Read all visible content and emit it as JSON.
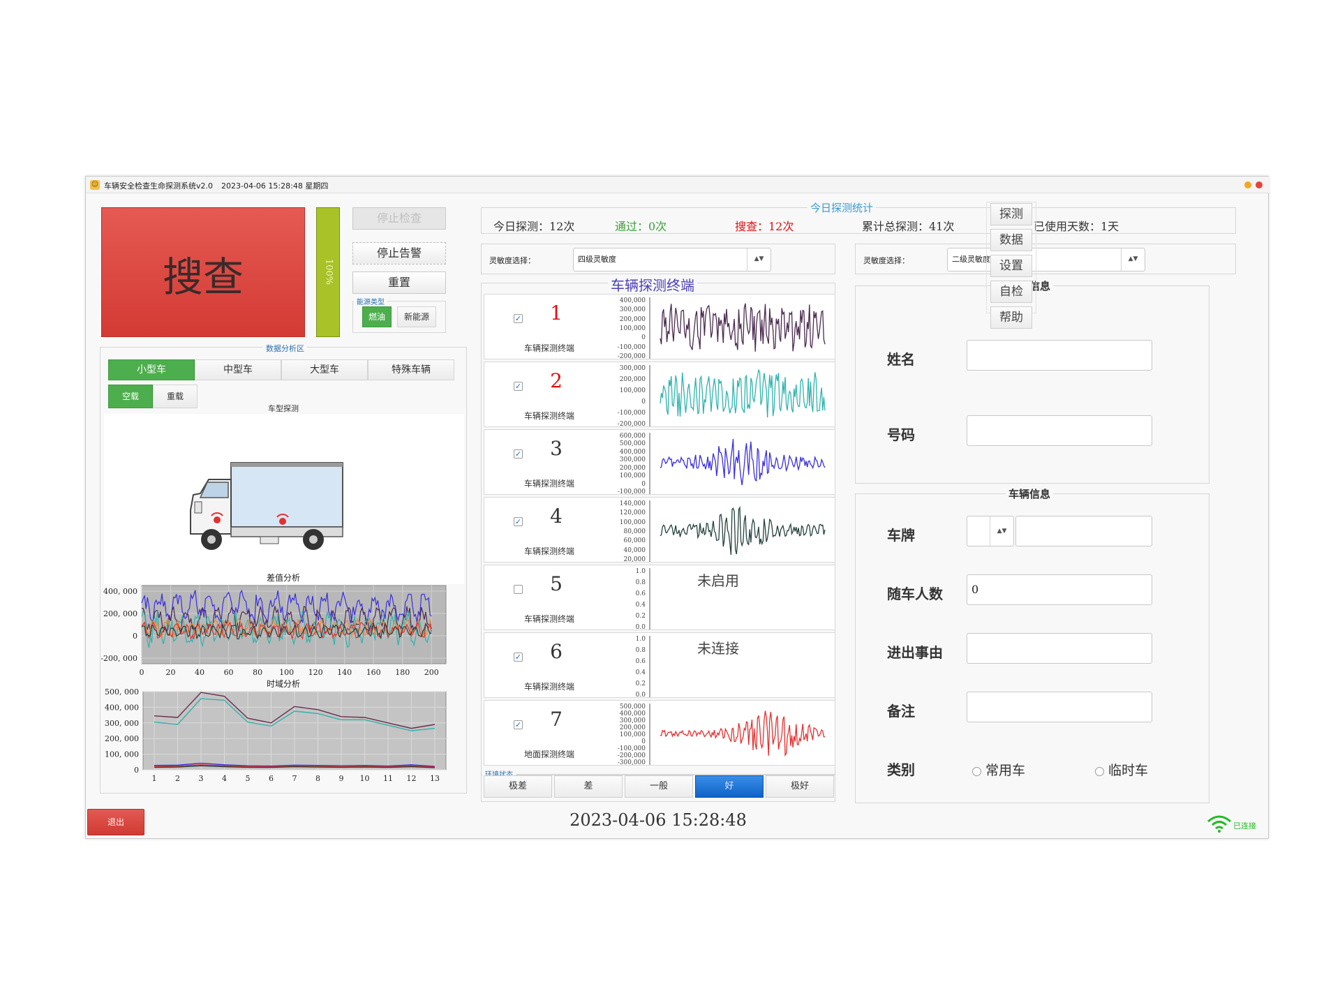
{
  "window": {
    "title": "车辆安全检查生命探测系统v2.0",
    "datetime": "2023-04-06 15:28:48 星期四",
    "icon": "person-search-icon"
  },
  "status": {
    "main_label": "搜查",
    "main_color": "#e0463f",
    "progress_label": "100%",
    "progress_value": 100
  },
  "controls": {
    "stop_check": "停止检查",
    "stop_alarm": "停止告警",
    "reset": "重置",
    "energy_legend": "能源类型",
    "energy_fuel": "燃油",
    "energy_new": "新能源"
  },
  "analysis": {
    "legend": "数据分析区",
    "tabs": [
      "小型车",
      "中型车",
      "大型车",
      "特殊车辆"
    ],
    "load_empty": "空载",
    "load_heavy": "重载",
    "vehicle_model_label": "车型探测",
    "diff_title": "差值分析",
    "time_title": "时域分析"
  },
  "stats": {
    "legend": "今日探测统计",
    "today": "今日探测：12次",
    "passed": "通过：0次",
    "searched": "搜查：12次",
    "total": "累计总探测：41次",
    "days": "已使用天数：1天"
  },
  "sensitivity": {
    "label": "灵敏度选择：",
    "left_value": "四级灵敏度",
    "right_label": "灵敏度选择：",
    "right_value": "二级灵敏度"
  },
  "terminals": {
    "legend": "车辆探测终端",
    "items": [
      {
        "num": "1",
        "label": "车辆探测终端",
        "checked": "✓",
        "y_ticks": [
          "400,000",
          "300,000",
          "200,000",
          "100,000",
          "0",
          "-100,000",
          "-200,000"
        ],
        "color": "#4b2a4f",
        "num_color": "#e01010",
        "message": ""
      },
      {
        "num": "2",
        "label": "车辆探测终端",
        "checked": "✓",
        "y_ticks": [
          "300,000",
          "200,000",
          "100,000",
          "0",
          "-100,000",
          "-200,000"
        ],
        "color": "#2fb3ad",
        "num_color": "#e01010",
        "message": ""
      },
      {
        "num": "3",
        "label": "车辆探测终端",
        "checked": "✓",
        "y_ticks": [
          "600,000",
          "500,000",
          "400,000",
          "300,000",
          "200,000",
          "100,000",
          "0",
          "-100,000"
        ],
        "color": "#3a2ee0",
        "num_color": "#333333",
        "message": ""
      },
      {
        "num": "4",
        "label": "车辆探测终端",
        "checked": "✓",
        "y_ticks": [
          "140,000",
          "120,000",
          "100,000",
          "80,000",
          "60,000",
          "40,000",
          "20,000"
        ],
        "color": "#24413d",
        "num_color": "#333333",
        "message": ""
      },
      {
        "num": "5",
        "label": "车辆探测终端",
        "checked": "",
        "y_ticks": [
          "1.0",
          "0.8",
          "0.6",
          "0.4",
          "0.2",
          "0.0"
        ],
        "color": "#999999",
        "num_color": "#333333",
        "message": "未启用"
      },
      {
        "num": "6",
        "label": "车辆探测终端",
        "checked": "✓",
        "y_ticks": [
          "1.0",
          "0.8",
          "0.6",
          "0.4",
          "0.2",
          "0.0"
        ],
        "color": "#999999",
        "num_color": "#333333",
        "message": "未连接"
      },
      {
        "num": "7",
        "label": "地面探测终端",
        "checked": "✓",
        "y_ticks": [
          "500,000",
          "400,000",
          "300,000",
          "200,000",
          "100,000",
          "0",
          "-100,000",
          "-200,000",
          "-300,000"
        ],
        "color": "#e53030",
        "num_color": "#333333",
        "message": ""
      }
    ]
  },
  "environment": {
    "legend": "环境状态",
    "levels": [
      "极差",
      "差",
      "一般",
      "好",
      "极好"
    ],
    "active_index": 3
  },
  "driver": {
    "title": "司机信息",
    "name_label": "姓名",
    "name_value": "",
    "phone_label": "号码",
    "phone_value": ""
  },
  "vehicle": {
    "title": "车辆信息",
    "plate_label": "车牌",
    "plate_prefix": "",
    "plate_value": "",
    "passengers_label": "随车人数",
    "passengers_value": "0",
    "reason_label": "进出事由",
    "reason_value": "",
    "remark_label": "备注",
    "remark_value": "",
    "category_label": "类别",
    "category_options": [
      "常用车",
      "临时车"
    ]
  },
  "side_nav": [
    "探测",
    "数据",
    "设置",
    "自检",
    "帮助"
  ],
  "footer": {
    "exit": "退出",
    "clock": "2023-04-06  15:28:48",
    "connection": "已连接",
    "connection_color": "#22bb22"
  },
  "chart_data": [
    {
      "type": "line",
      "title": "差值分析",
      "x_ticks": [
        0,
        20,
        40,
        60,
        80,
        100,
        120,
        140,
        160,
        180,
        200
      ],
      "y_ticks": [
        "400, 000",
        "200, 000",
        "0",
        "-200, 000"
      ],
      "ylim": [
        -250000,
        450000
      ],
      "xlim": [
        0,
        210
      ],
      "series_colors": [
        "#3a2ee0",
        "#4b2a4f",
        "#2fb3ad",
        "#e58a3a",
        "#e53030",
        "#24413d"
      ]
    },
    {
      "type": "line",
      "title": "时域分析",
      "categories": [
        1,
        2,
        3,
        4,
        5,
        6,
        7,
        8,
        9,
        10,
        11,
        12,
        13
      ],
      "y_ticks": [
        "500, 000",
        "400, 000",
        "300, 000",
        "200, 000",
        "100, 000",
        "0"
      ],
      "ylim": [
        0,
        500000
      ],
      "series": [
        {
          "values": [
            345000,
            335000,
            495000,
            470000,
            330000,
            300000,
            405000,
            385000,
            340000,
            335000,
            300000,
            265000,
            290000
          ],
          "color": "#6b2c4c"
        },
        {
          "values": [
            305000,
            290000,
            455000,
            445000,
            305000,
            280000,
            375000,
            360000,
            320000,
            320000,
            285000,
            250000,
            265000
          ],
          "color": "#2fb3ad"
        },
        {
          "values": [
            28000,
            30000,
            42000,
            32000,
            26000,
            24000,
            30000,
            28000,
            26000,
            28000,
            24000,
            32000,
            22000
          ],
          "color": "#3a2ee0"
        },
        {
          "values": [
            22000,
            24000,
            32000,
            26000,
            22000,
            20000,
            26000,
            24000,
            22000,
            24000,
            20000,
            26000,
            18000
          ],
          "color": "#e53030"
        },
        {
          "values": [
            16000,
            18000,
            26000,
            20000,
            16000,
            15000,
            20000,
            18000,
            16000,
            18000,
            15000,
            20000,
            14000
          ],
          "color": "#24413d"
        }
      ]
    }
  ]
}
